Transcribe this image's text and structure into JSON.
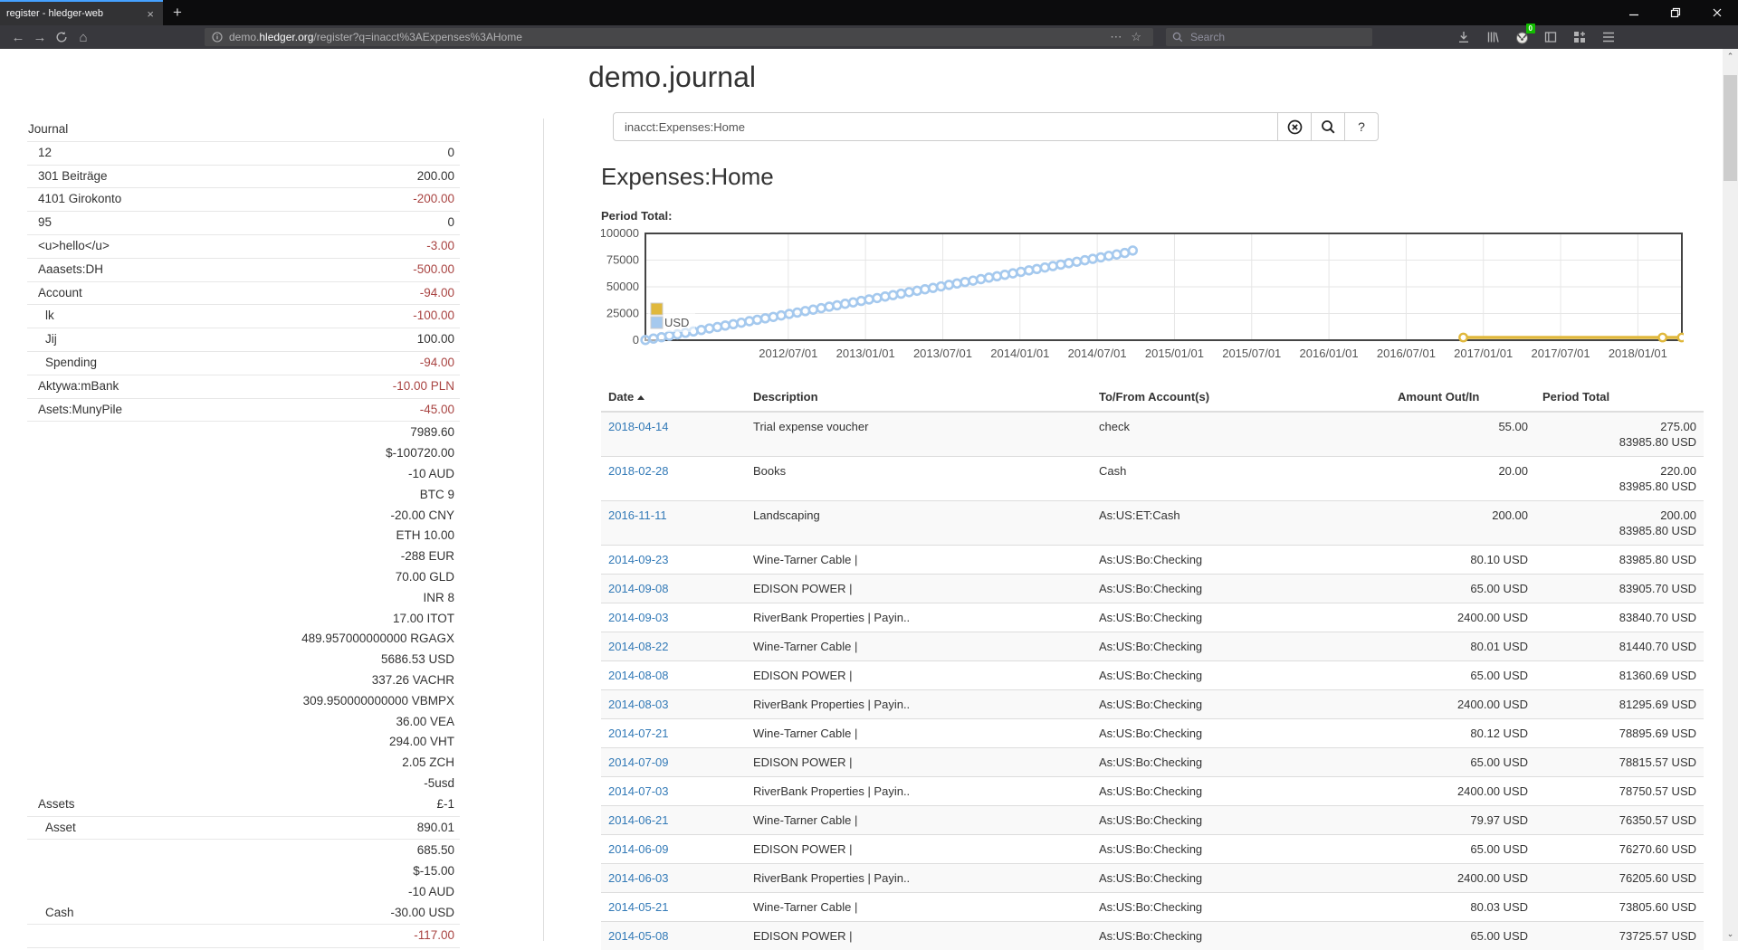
{
  "browser": {
    "tab_title": "register - hledger-web",
    "close_tab": "×",
    "new_tab": "+",
    "url_scheme_prefix": "demo.",
    "url_domain": "hledger.org",
    "url_path": "/register?q=inacct%3AExpenses%3AHome",
    "page_actions": {
      "overflow": "⋯",
      "bookmark": "☆"
    },
    "search_placeholder": "Search",
    "extension_badge": "0",
    "home_glyph": "⌂",
    "back_glyph": "←",
    "forward_glyph": "→"
  },
  "scrollbar": {
    "up": "⌃",
    "down": "⌄"
  },
  "page": {
    "title": "demo.journal",
    "query_value": "inacct:Expenses:Home",
    "help_label": "?",
    "heading": "Expenses:Home",
    "chart_label": "Period Total:"
  },
  "sidebar": {
    "items": [
      {
        "name": "Journal",
        "indent": 0,
        "values": []
      },
      {
        "name": "12",
        "indent": 1,
        "values": [
          {
            "t": "0",
            "n": false
          }
        ]
      },
      {
        "name": "301 Beiträge",
        "indent": 1,
        "values": [
          {
            "t": "200.00",
            "n": false
          }
        ]
      },
      {
        "name": "4101 Girokonto",
        "indent": 1,
        "values": [
          {
            "t": "-200.00",
            "n": true
          }
        ]
      },
      {
        "name": "95",
        "indent": 1,
        "values": [
          {
            "t": "0",
            "n": false
          }
        ]
      },
      {
        "name": "<u>hello</u>",
        "indent": 1,
        "values": [
          {
            "t": "-3.00",
            "n": true
          }
        ]
      },
      {
        "name": "Aaasets:DH",
        "indent": 1,
        "values": [
          {
            "t": "-500.00",
            "n": true
          }
        ]
      },
      {
        "name": "Account",
        "indent": 1,
        "values": [
          {
            "t": "-94.00",
            "n": true
          }
        ]
      },
      {
        "name": "lk",
        "indent": 2,
        "values": [
          {
            "t": "-100.00",
            "n": true
          }
        ]
      },
      {
        "name": "Jij",
        "indent": 2,
        "values": [
          {
            "t": "100.00",
            "n": false
          }
        ]
      },
      {
        "name": "Spending",
        "indent": 2,
        "values": [
          {
            "t": "-94.00",
            "n": true
          }
        ]
      },
      {
        "name": "Aktywa:mBank",
        "indent": 1,
        "values": [
          {
            "t": "-10.00 PLN",
            "n": true
          }
        ]
      },
      {
        "name": "Asets:MunyPile",
        "indent": 1,
        "values": [
          {
            "t": "-45.00",
            "n": true
          }
        ]
      },
      {
        "name": "Assets",
        "indent": 1,
        "values": [
          {
            "t": "7989.60",
            "n": false
          },
          {
            "t": "$-100720.00",
            "n": false
          },
          {
            "t": "-10 AUD",
            "n": false
          },
          {
            "t": "BTC 9",
            "n": false
          },
          {
            "t": "-20.00 CNY",
            "n": false
          },
          {
            "t": "ETH 10.00",
            "n": false
          },
          {
            "t": "-288 EUR",
            "n": false
          },
          {
            "t": "70.00 GLD",
            "n": false
          },
          {
            "t": "INR 8",
            "n": false
          },
          {
            "t": "17.00 ITOT",
            "n": false
          },
          {
            "t": "489.957000000000 RGAGX",
            "n": false
          },
          {
            "t": "5686.53 USD",
            "n": false
          },
          {
            "t": "337.26 VACHR",
            "n": false
          },
          {
            "t": "309.950000000000 VBMPX",
            "n": false
          },
          {
            "t": "36.00 VEA",
            "n": false
          },
          {
            "t": "294.00 VHT",
            "n": false
          },
          {
            "t": "2.05 ZCH",
            "n": false
          },
          {
            "t": "-5usd",
            "n": false
          },
          {
            "t": "£-1",
            "n": false
          }
        ]
      },
      {
        "name": "Asset",
        "indent": 2,
        "values": [
          {
            "t": "890.01",
            "n": false
          }
        ]
      },
      {
        "name": "Cash",
        "indent": 2,
        "values": [
          {
            "t": "685.50",
            "n": false
          },
          {
            "t": "$-15.00",
            "n": false
          },
          {
            "t": "-10 AUD",
            "n": false
          },
          {
            "t": "-30.00 USD",
            "n": false
          }
        ]
      },
      {
        "name": "",
        "indent": 2,
        "values": [
          {
            "t": "-117.00",
            "n": true
          }
        ]
      }
    ]
  },
  "chart_data": {
    "type": "line",
    "title": "Period Total:",
    "x_axis": {
      "min": 2011.575,
      "max": 2018.285,
      "tick_positions": [
        2012.5,
        2013.0,
        2013.5,
        2014.0,
        2014.5,
        2015.0,
        2015.5,
        2016.0,
        2016.5,
        2017.0,
        2017.5,
        2018.0
      ],
      "tick_labels": [
        "2012/07/01",
        "2013/01/01",
        "2013/07/01",
        "2014/01/01",
        "2014/07/01",
        "2015/01/01",
        "2015/07/01",
        "2016/01/01",
        "2016/07/01",
        "2017/01/01",
        "2017/07/01",
        "2018/01/01"
      ]
    },
    "y_axis": {
      "min": 0,
      "max": 100000,
      "ticks": [
        0,
        25000,
        50000,
        75000,
        100000
      ]
    },
    "grid": true,
    "legend_position": "inside-bottom-left",
    "series": [
      {
        "name": "",
        "color": "#e0b83c",
        "style": "line+points",
        "points": [
          [
            2016.87,
            200
          ],
          [
            2018.16,
            220
          ],
          [
            2018.285,
            275
          ]
        ]
      },
      {
        "name": "USD",
        "color": "#a5c9ee",
        "style": "points",
        "points": [
          [
            2011.575,
            200
          ],
          [
            2011.627,
            1500
          ],
          [
            2011.679,
            2800
          ],
          [
            2011.73,
            4200
          ],
          [
            2011.782,
            5500
          ],
          [
            2011.834,
            6900
          ],
          [
            2011.886,
            8200
          ],
          [
            2011.937,
            9600
          ],
          [
            2011.989,
            11000
          ],
          [
            2012.041,
            12300
          ],
          [
            2012.092,
            13700
          ],
          [
            2012.144,
            15000
          ],
          [
            2012.196,
            16400
          ],
          [
            2012.248,
            17800
          ],
          [
            2012.299,
            19100
          ],
          [
            2012.351,
            20500
          ],
          [
            2012.403,
            21800
          ],
          [
            2012.454,
            23200
          ],
          [
            2012.506,
            24600
          ],
          [
            2012.558,
            25900
          ],
          [
            2012.61,
            27300
          ],
          [
            2012.661,
            28600
          ],
          [
            2012.713,
            30000
          ],
          [
            2012.765,
            31400
          ],
          [
            2012.816,
            32700
          ],
          [
            2012.868,
            34100
          ],
          [
            2012.92,
            35400
          ],
          [
            2012.972,
            36800
          ],
          [
            2013.023,
            38200
          ],
          [
            2013.075,
            39500
          ],
          [
            2013.127,
            40900
          ],
          [
            2013.178,
            42200
          ],
          [
            2013.23,
            43600
          ],
          [
            2013.282,
            45000
          ],
          [
            2013.334,
            46300
          ],
          [
            2013.385,
            47700
          ],
          [
            2013.437,
            49000
          ],
          [
            2013.489,
            50400
          ],
          [
            2013.54,
            51800
          ],
          [
            2013.592,
            53100
          ],
          [
            2013.644,
            54500
          ],
          [
            2013.696,
            55800
          ],
          [
            2013.747,
            57200
          ],
          [
            2013.799,
            58600
          ],
          [
            2013.851,
            59900
          ],
          [
            2013.902,
            61300
          ],
          [
            2013.954,
            62600
          ],
          [
            2014.006,
            64000
          ],
          [
            2014.058,
            65400
          ],
          [
            2014.109,
            66700
          ],
          [
            2014.161,
            68100
          ],
          [
            2014.213,
            69400
          ],
          [
            2014.264,
            70800
          ],
          [
            2014.316,
            72200
          ],
          [
            2014.368,
            73500
          ],
          [
            2014.42,
            74900
          ],
          [
            2014.471,
            76200
          ],
          [
            2014.523,
            77600
          ],
          [
            2014.575,
            79000
          ],
          [
            2014.626,
            80300
          ],
          [
            2014.678,
            81700
          ],
          [
            2014.73,
            83986
          ]
        ]
      }
    ]
  },
  "register": {
    "columns": [
      "Date",
      "Description",
      "To/From Account(s)",
      "Amount Out/In",
      "Period Total"
    ],
    "rows": [
      {
        "date": "2018-04-14",
        "desc": "Trial expense voucher",
        "acct": "check",
        "amount": "55.00",
        "totals": [
          "275.00",
          "83985.80 USD"
        ]
      },
      {
        "date": "2018-02-28",
        "desc": "Books",
        "acct": "Cash",
        "amount": "20.00",
        "totals": [
          "220.00",
          "83985.80 USD"
        ]
      },
      {
        "date": "2016-11-11",
        "desc": "Landscaping",
        "acct": "As:US:ET:Cash",
        "amount": "200.00",
        "totals": [
          "200.00",
          "83985.80 USD"
        ]
      },
      {
        "date": "2014-09-23",
        "desc": "Wine-Tarner Cable |",
        "acct": "As:US:Bo:Checking",
        "amount": "80.10 USD",
        "totals": [
          "83985.80 USD"
        ]
      },
      {
        "date": "2014-09-08",
        "desc": "EDISON POWER |",
        "acct": "As:US:Bo:Checking",
        "amount": "65.00 USD",
        "totals": [
          "83905.70 USD"
        ]
      },
      {
        "date": "2014-09-03",
        "desc": "RiverBank Properties | Payin..",
        "acct": "As:US:Bo:Checking",
        "amount": "2400.00 USD",
        "totals": [
          "83840.70 USD"
        ]
      },
      {
        "date": "2014-08-22",
        "desc": "Wine-Tarner Cable |",
        "acct": "As:US:Bo:Checking",
        "amount": "80.01 USD",
        "totals": [
          "81440.70 USD"
        ]
      },
      {
        "date": "2014-08-08",
        "desc": "EDISON POWER |",
        "acct": "As:US:Bo:Checking",
        "amount": "65.00 USD",
        "totals": [
          "81360.69 USD"
        ]
      },
      {
        "date": "2014-08-03",
        "desc": "RiverBank Properties | Payin..",
        "acct": "As:US:Bo:Checking",
        "amount": "2400.00 USD",
        "totals": [
          "81295.69 USD"
        ]
      },
      {
        "date": "2014-07-21",
        "desc": "Wine-Tarner Cable |",
        "acct": "As:US:Bo:Checking",
        "amount": "80.12 USD",
        "totals": [
          "78895.69 USD"
        ]
      },
      {
        "date": "2014-07-09",
        "desc": "EDISON POWER |",
        "acct": "As:US:Bo:Checking",
        "amount": "65.00 USD",
        "totals": [
          "78815.57 USD"
        ]
      },
      {
        "date": "2014-07-03",
        "desc": "RiverBank Properties | Payin..",
        "acct": "As:US:Bo:Checking",
        "amount": "2400.00 USD",
        "totals": [
          "78750.57 USD"
        ]
      },
      {
        "date": "2014-06-21",
        "desc": "Wine-Tarner Cable |",
        "acct": "As:US:Bo:Checking",
        "amount": "79.97 USD",
        "totals": [
          "76350.57 USD"
        ]
      },
      {
        "date": "2014-06-09",
        "desc": "EDISON POWER |",
        "acct": "As:US:Bo:Checking",
        "amount": "65.00 USD",
        "totals": [
          "76270.60 USD"
        ]
      },
      {
        "date": "2014-06-03",
        "desc": "RiverBank Properties | Payin..",
        "acct": "As:US:Bo:Checking",
        "amount": "2400.00 USD",
        "totals": [
          "76205.60 USD"
        ]
      },
      {
        "date": "2014-05-21",
        "desc": "Wine-Tarner Cable |",
        "acct": "As:US:Bo:Checking",
        "amount": "80.03 USD",
        "totals": [
          "73805.60 USD"
        ]
      },
      {
        "date": "2014-05-08",
        "desc": "EDISON POWER |",
        "acct": "As:US:Bo:Checking",
        "amount": "65.00 USD",
        "totals": [
          "73725.57 USD"
        ]
      }
    ]
  }
}
